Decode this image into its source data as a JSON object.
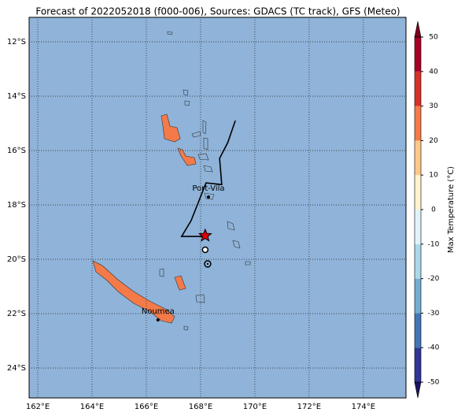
{
  "title": "Forecast of 2022052018 (f000-006), Sources: GDACS (TC track), GFS (Meteo)",
  "map": {
    "xlim": [
      161.68,
      175.57
    ],
    "ylim": [
      -25.1,
      -11.1
    ],
    "xticks": [
      {
        "value": 162,
        "label": "162°E"
      },
      {
        "value": 164,
        "label": "164°E"
      },
      {
        "value": 166,
        "label": "166°E"
      },
      {
        "value": 168,
        "label": "168°E"
      },
      {
        "value": 170,
        "label": "170°E"
      },
      {
        "value": 172,
        "label": "172°E"
      },
      {
        "value": 174,
        "label": "174°E"
      }
    ],
    "yticks": [
      {
        "value": -12,
        "label": "12°S"
      },
      {
        "value": -14,
        "label": "14°S"
      },
      {
        "value": -16,
        "label": "16°S"
      },
      {
        "value": -18,
        "label": "18°S"
      },
      {
        "value": -20,
        "label": "20°S"
      },
      {
        "value": -22,
        "label": "22°S"
      },
      {
        "value": -24,
        "label": "24°S"
      }
    ],
    "grid": true,
    "track": {
      "lon": [
        169.28,
        169.0,
        168.7,
        168.78,
        168.2,
        167.65,
        167.3,
        168.17
      ],
      "lat": [
        -14.9,
        -15.71,
        -16.29,
        -17.25,
        -17.19,
        -18.58,
        -19.16,
        -19.16
      ],
      "color": "#000000"
    },
    "current": {
      "lon": 168.17,
      "lat": -19.13,
      "color": "#e00000"
    },
    "forecast": {
      "lon": [
        168.17,
        168.26
      ],
      "lat": [
        -19.65,
        -20.17
      ]
    },
    "cities": [
      {
        "name": "Port-Vila",
        "lon": 168.29,
        "lat": -17.71
      },
      {
        "name": "Noumea",
        "lon": 166.43,
        "lat": -22.23
      }
    ]
  },
  "colorbar": {
    "label": "Max Temperature (°C)",
    "clim": [
      -50,
      50
    ],
    "ticks": [
      -50,
      -40,
      -30,
      -20,
      -10,
      0,
      10,
      20,
      30,
      40,
      50
    ],
    "colors": [
      "#313695",
      "#4575b4",
      "#74add1",
      "#abd9e9",
      "#e0f3f8",
      "#fff2cc",
      "#fdc98a",
      "#f47a4a",
      "#d73027",
      "#a50026"
    ],
    "extend_colors": [
      "#1c1460",
      "#7a0020"
    ]
  }
}
